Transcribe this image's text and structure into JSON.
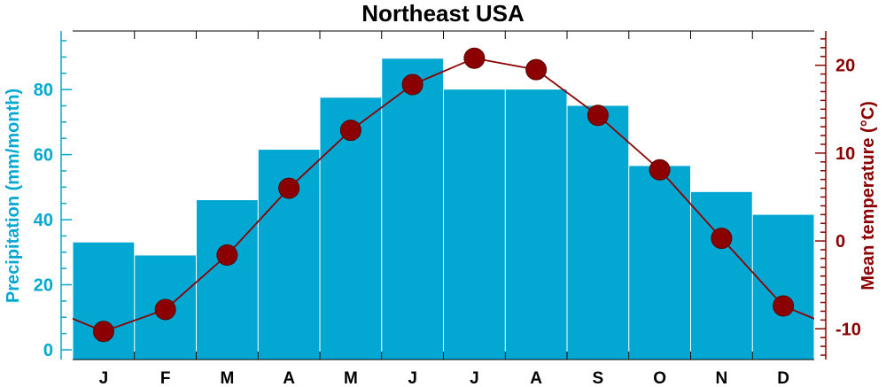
{
  "colors": {
    "precip": "#03a8d2",
    "temp": "#8b0000",
    "axis": "#000000"
  },
  "chart_data": {
    "type": "bar",
    "title": "Northeast USA",
    "categories": [
      "J",
      "F",
      "M",
      "A",
      "M",
      "J",
      "J",
      "A",
      "S",
      "O",
      "N",
      "D"
    ],
    "series": [
      {
        "type": "bar",
        "axis": "left",
        "values": [
          33,
          29,
          46,
          61.5,
          77.5,
          89.5,
          80,
          80,
          75,
          56.5,
          48.5,
          41.5
        ]
      },
      {
        "type": "line",
        "axis": "right",
        "values": [
          -10.3,
          -7.8,
          -1.6,
          6.0,
          12.6,
          17.8,
          20.8,
          19.5,
          14.3,
          8.1,
          0.3,
          -7.4
        ]
      }
    ],
    "y_left": {
      "label": "Precipitation (mm/month)",
      "lim": [
        -3,
        98
      ],
      "ticks": [
        0,
        20,
        40,
        60,
        80
      ]
    },
    "y_right": {
      "label": "Mean temperature (°C)",
      "lim": [
        -13.5,
        23.9
      ],
      "ticks": [
        -10,
        0,
        10,
        20
      ]
    },
    "grid": false
  }
}
